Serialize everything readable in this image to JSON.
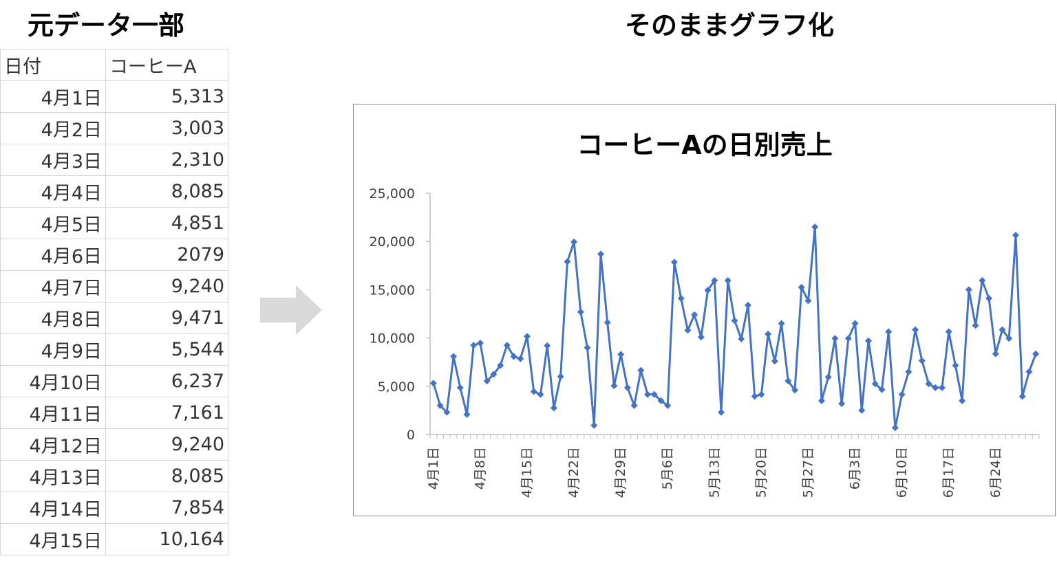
{
  "headings": {
    "left": "元データ一部",
    "right": "そのままグラフ化"
  },
  "table": {
    "headers": [
      "日付",
      "コーヒーA"
    ],
    "rows": [
      [
        "4月1日",
        "5,313"
      ],
      [
        "4月2日",
        "3,003"
      ],
      [
        "4月3日",
        "2,310"
      ],
      [
        "4月4日",
        "8,085"
      ],
      [
        "4月5日",
        "4,851"
      ],
      [
        "4月6日",
        "2079"
      ],
      [
        "4月7日",
        "9,240"
      ],
      [
        "4月8日",
        "9,471"
      ],
      [
        "4月9日",
        "5,544"
      ],
      [
        "4月10日",
        "6,237"
      ],
      [
        "4月11日",
        "7,161"
      ],
      [
        "4月12日",
        "9,240"
      ],
      [
        "4月13日",
        "8,085"
      ],
      [
        "4月14日",
        "7,854"
      ],
      [
        "4月15日",
        "10,164"
      ]
    ]
  },
  "colors": {
    "series": "#4472C4",
    "arrow": "#d9d9d9",
    "axis": "#bfbfbf"
  },
  "chart_data": {
    "type": "line",
    "title": "コーヒーAの日別売上",
    "ylim": [
      0,
      25000
    ],
    "y_ticks": [
      "0",
      "5,000",
      "10,000",
      "15,000",
      "20,000",
      "25,000"
    ],
    "x_tick_labels": [
      "4月1日",
      "4月8日",
      "4月15日",
      "4月22日",
      "4月29日",
      "5月6日",
      "5月13日",
      "5月20日",
      "5月27日",
      "6月3日",
      "6月10日",
      "6月17日",
      "6月24日"
    ],
    "x_tick_every": 7,
    "grid": false,
    "legend": "none",
    "marker": "diamond",
    "series": [
      {
        "values": [
          5313,
          3003,
          2310,
          8085,
          4851,
          2079,
          9240,
          9471,
          5544,
          6237,
          7161,
          9240,
          8085,
          7854,
          10164,
          4450,
          4150,
          9200,
          2750,
          6000,
          17900,
          19950,
          12700,
          9000,
          950,
          18700,
          11600,
          5050,
          8300,
          4850,
          3000,
          6650,
          4150,
          4150,
          3500,
          3000,
          17850,
          14100,
          10800,
          12400,
          10100,
          14950,
          15950,
          2300,
          15950,
          11800,
          9900,
          13400,
          3950,
          4150,
          10400,
          7600,
          11500,
          5550,
          4600,
          15250,
          13850,
          21500,
          3500,
          5950,
          9950,
          3200,
          9950,
          11500,
          2500,
          9700,
          5250,
          4650,
          10650,
          700,
          4150,
          6500,
          10850,
          7650,
          5250,
          4850,
          4850,
          10650,
          7150,
          3500,
          15000,
          11300,
          15950,
          14100,
          8350,
          10850,
          9950,
          20650,
          3950,
          6500,
          8350
        ]
      }
    ]
  }
}
